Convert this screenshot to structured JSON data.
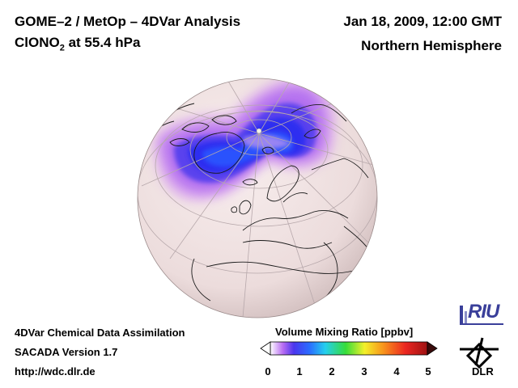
{
  "header": {
    "title": "GOME–2 / MetOp – 4DVar Analysis",
    "species": "ClONO",
    "species_sub": "2",
    "level": " at 55.4 hPa",
    "date": "Jan 18, 2009, 12:00 GMT",
    "region": "Northern Hemisphere"
  },
  "footer": {
    "line1": "4DVar Chemical Data Assimilation",
    "line2": "SACADA Version 1.7",
    "line3": "http://wdc.dlr.de"
  },
  "colorbar": {
    "title": "Volume Mixing Ratio [ppbv]",
    "ticks": [
      "0",
      "1",
      "2",
      "3",
      "4",
      "5"
    ],
    "stops": [
      "#ffffff",
      "#9b3df0",
      "#3e3cf2",
      "#2a7bff",
      "#23d4ef",
      "#3ee23e",
      "#f6f229",
      "#f78c1c",
      "#ef2a22",
      "#a31414"
    ]
  },
  "logos": {
    "riu": "RIU",
    "dlr": "DLR"
  }
}
